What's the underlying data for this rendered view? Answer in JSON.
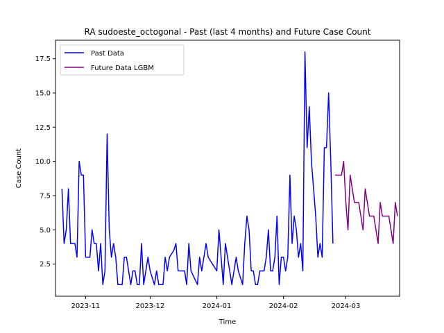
{
  "chart_data": {
    "type": "line",
    "title": "RA sudoeste_octogonal - Past (last 4 months) and Future Case Count",
    "xlabel": "Time",
    "ylabel": "Case Count",
    "xlim": [
      "2023-10-18",
      "2024-03-26"
    ],
    "ylim": [
      0.15,
      18.85
    ],
    "x_ticks": [
      {
        "date": "2023-11-01",
        "label": "2023-11"
      },
      {
        "date": "2023-12-01",
        "label": "2023-12"
      },
      {
        "date": "2024-01-01",
        "label": "2024-01"
      },
      {
        "date": "2024-02-01",
        "label": "2024-02"
      },
      {
        "date": "2024-03-01",
        "label": "2024-03"
      }
    ],
    "y_ticks": [
      "2.5",
      "5.0",
      "7.5",
      "10.0",
      "12.5",
      "15.0",
      "17.5"
    ],
    "y_tick_values": [
      2.5,
      5.0,
      7.5,
      10.0,
      12.5,
      15.0,
      17.5
    ],
    "grid": false,
    "legend_position": "top-left",
    "series": [
      {
        "name": "Past Data",
        "color": "#0000ff",
        "points": [
          [
            "2023-10-21",
            8
          ],
          [
            "2023-10-22",
            4
          ],
          [
            "2023-10-23",
            5
          ],
          [
            "2023-10-24",
            8
          ],
          [
            "2023-10-25",
            4
          ],
          [
            "2023-10-26",
            4
          ],
          [
            "2023-10-27",
            4
          ],
          [
            "2023-10-28",
            3
          ],
          [
            "2023-10-29",
            10
          ],
          [
            "2023-10-30",
            9
          ],
          [
            "2023-10-31",
            9
          ],
          [
            "2023-11-01",
            3
          ],
          [
            "2023-11-02",
            3
          ],
          [
            "2023-11-03",
            3
          ],
          [
            "2023-11-04",
            5
          ],
          [
            "2023-11-05",
            4
          ],
          [
            "2023-11-06",
            4
          ],
          [
            "2023-11-07",
            2
          ],
          [
            "2023-11-08",
            4
          ],
          [
            "2023-11-09",
            1
          ],
          [
            "2023-11-10",
            2
          ],
          [
            "2023-11-11",
            12
          ],
          [
            "2023-11-12",
            5
          ],
          [
            "2023-11-13",
            3
          ],
          [
            "2023-11-14",
            4
          ],
          [
            "2023-11-15",
            3
          ],
          [
            "2023-11-16",
            1
          ],
          [
            "2023-11-17",
            1
          ],
          [
            "2023-11-18",
            1
          ],
          [
            "2023-11-19",
            3
          ],
          [
            "2023-11-20",
            3
          ],
          [
            "2023-11-21",
            2
          ],
          [
            "2023-11-22",
            1
          ],
          [
            "2023-11-23",
            2
          ],
          [
            "2023-11-24",
            2
          ],
          [
            "2023-11-25",
            1
          ],
          [
            "2023-11-26",
            1
          ],
          [
            "2023-11-27",
            4
          ],
          [
            "2023-11-28",
            1
          ],
          [
            "2023-11-29",
            2
          ],
          [
            "2023-11-30",
            3
          ],
          [
            "2023-12-01",
            2
          ],
          [
            "2023-12-03",
            1
          ],
          [
            "2023-12-04",
            2
          ],
          [
            "2023-12-05",
            1
          ],
          [
            "2023-12-06",
            1
          ],
          [
            "2023-12-07",
            1
          ],
          [
            "2023-12-08",
            3
          ],
          [
            "2023-12-09",
            2
          ],
          [
            "2023-12-10",
            3
          ],
          [
            "2023-12-12",
            3.5
          ],
          [
            "2023-12-13",
            4
          ],
          [
            "2023-12-14",
            2
          ],
          [
            "2023-12-15",
            2
          ],
          [
            "2023-12-16",
            2
          ],
          [
            "2023-12-17",
            2
          ],
          [
            "2023-12-18",
            1
          ],
          [
            "2023-12-19",
            4
          ],
          [
            "2023-12-20",
            2
          ],
          [
            "2023-12-23",
            1
          ],
          [
            "2023-12-24",
            3
          ],
          [
            "2023-12-25",
            2
          ],
          [
            "2023-12-26",
            3
          ],
          [
            "2023-12-27",
            4
          ],
          [
            "2023-12-28",
            3
          ],
          [
            "2024-01-01",
            2
          ],
          [
            "2024-01-02",
            5
          ],
          [
            "2024-01-03",
            3
          ],
          [
            "2024-01-04",
            1
          ],
          [
            "2024-01-05",
            4
          ],
          [
            "2024-01-06",
            3
          ],
          [
            "2024-01-07",
            2
          ],
          [
            "2024-01-08",
            1
          ],
          [
            "2024-01-09",
            2
          ],
          [
            "2024-01-10",
            3
          ],
          [
            "2024-01-11",
            2
          ],
          [
            "2024-01-13",
            1
          ],
          [
            "2024-01-14",
            4
          ],
          [
            "2024-01-15",
            6
          ],
          [
            "2024-01-16",
            5
          ],
          [
            "2024-01-17",
            2
          ],
          [
            "2024-01-18",
            2
          ],
          [
            "2024-01-19",
            1
          ],
          [
            "2024-01-20",
            1
          ],
          [
            "2024-01-21",
            2
          ],
          [
            "2024-01-22",
            2
          ],
          [
            "2024-01-23",
            2
          ],
          [
            "2024-01-24",
            3
          ],
          [
            "2024-01-25",
            5
          ],
          [
            "2024-01-26",
            2
          ],
          [
            "2024-01-27",
            2
          ],
          [
            "2024-01-28",
            3
          ],
          [
            "2024-01-29",
            6
          ],
          [
            "2024-01-30",
            1
          ],
          [
            "2024-01-31",
            3
          ],
          [
            "2024-02-01",
            3
          ],
          [
            "2024-02-02",
            2
          ],
          [
            "2024-02-03",
            3
          ],
          [
            "2024-02-04",
            9
          ],
          [
            "2024-02-05",
            4
          ],
          [
            "2024-02-06",
            6
          ],
          [
            "2024-02-07",
            5
          ],
          [
            "2024-02-08",
            3
          ],
          [
            "2024-02-09",
            4
          ],
          [
            "2024-02-10",
            2
          ],
          [
            "2024-02-11",
            18
          ],
          [
            "2024-02-12",
            11
          ],
          [
            "2024-02-13",
            14
          ],
          [
            "2024-02-14",
            10
          ],
          [
            "2024-02-15",
            8
          ],
          [
            "2024-02-16",
            6
          ],
          [
            "2024-02-17",
            3
          ],
          [
            "2024-02-18",
            4
          ],
          [
            "2024-02-19",
            3
          ],
          [
            "2024-02-20",
            11
          ],
          [
            "2024-02-21",
            11
          ],
          [
            "2024-02-22",
            15
          ],
          [
            "2024-02-23",
            10
          ],
          [
            "2024-02-24",
            4
          ]
        ]
      },
      {
        "name": "Future Data LGBM",
        "color": "#800080",
        "points": [
          [
            "2024-02-25",
            9
          ],
          [
            "2024-02-26",
            9
          ],
          [
            "2024-02-27",
            9
          ],
          [
            "2024-02-28",
            9
          ],
          [
            "2024-02-29",
            10
          ],
          [
            "2024-03-01",
            7
          ],
          [
            "2024-03-02",
            5
          ],
          [
            "2024-03-03",
            9
          ],
          [
            "2024-03-04",
            8
          ],
          [
            "2024-03-05",
            7
          ],
          [
            "2024-03-06",
            7
          ],
          [
            "2024-03-07",
            7
          ],
          [
            "2024-03-08",
            6
          ],
          [
            "2024-03-09",
            5
          ],
          [
            "2024-03-10",
            8
          ],
          [
            "2024-03-11",
            7
          ],
          [
            "2024-03-12",
            6
          ],
          [
            "2024-03-13",
            6
          ],
          [
            "2024-03-14",
            6
          ],
          [
            "2024-03-15",
            5
          ],
          [
            "2024-03-16",
            4
          ],
          [
            "2024-03-17",
            7
          ],
          [
            "2024-03-18",
            6
          ],
          [
            "2024-03-19",
            6
          ],
          [
            "2024-03-20",
            6
          ],
          [
            "2024-03-21",
            6
          ],
          [
            "2024-03-22",
            5
          ],
          [
            "2024-03-23",
            4
          ],
          [
            "2024-03-24",
            7
          ],
          [
            "2024-03-25",
            6
          ]
        ]
      }
    ]
  }
}
